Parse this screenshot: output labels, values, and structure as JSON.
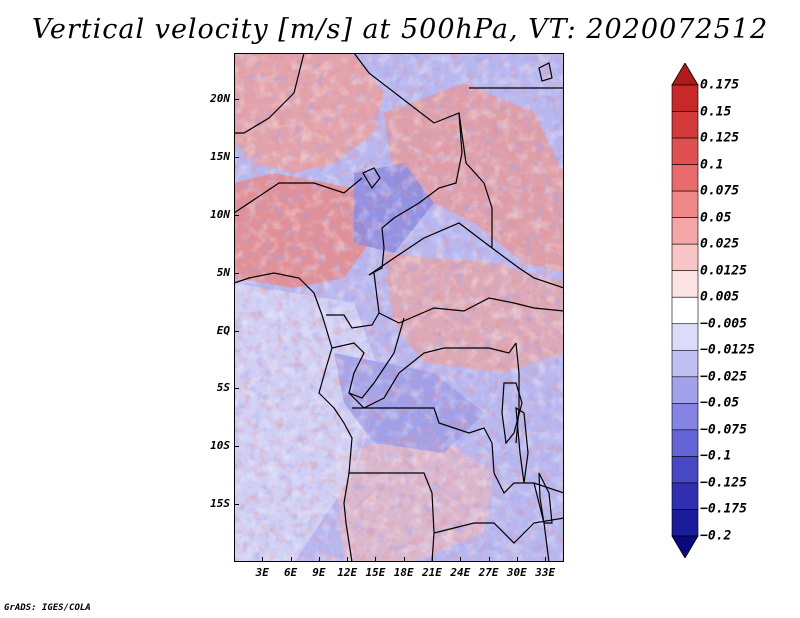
{
  "title": "Vertical velocity [m/s] at 500hPa, VT: 2020072512",
  "footer": "GrADS: IGES/COLA",
  "map": {
    "region": "Central Africa",
    "lon_range": [
      0,
      35
    ],
    "lat_range": [
      -20,
      24
    ],
    "lat_ticks": [
      {
        "label": "20N",
        "value": 20
      },
      {
        "label": "15N",
        "value": 15
      },
      {
        "label": "10N",
        "value": 10
      },
      {
        "label": "5N",
        "value": 5
      },
      {
        "label": "EQ",
        "value": 0
      },
      {
        "label": "5S",
        "value": -5
      },
      {
        "label": "10S",
        "value": -10
      },
      {
        "label": "15S",
        "value": -15
      }
    ],
    "lon_ticks": [
      {
        "label": "3E",
        "value": 3
      },
      {
        "label": "6E",
        "value": 6
      },
      {
        "label": "9E",
        "value": 9
      },
      {
        "label": "12E",
        "value": 12
      },
      {
        "label": "15E",
        "value": 15
      },
      {
        "label": "18E",
        "value": 18
      },
      {
        "label": "21E",
        "value": 21
      },
      {
        "label": "24E",
        "value": 24
      },
      {
        "label": "27E",
        "value": 27
      },
      {
        "label": "30E",
        "value": 30
      },
      {
        "label": "33E",
        "value": 33
      }
    ]
  },
  "colorbar": {
    "labels": [
      "0.175",
      "0.15",
      "0.125",
      "0.1",
      "0.075",
      "0.05",
      "0.025",
      "0.0125",
      "0.005",
      "−0.005",
      "−0.0125",
      "−0.025",
      "−0.05",
      "−0.075",
      "−0.1",
      "−0.125",
      "−0.175",
      "−0.2"
    ],
    "colors": [
      "#b01a1a",
      "#c82828",
      "#d43a3a",
      "#e05050",
      "#e86a6a",
      "#ef8888",
      "#f4a6a6",
      "#f8c6c6",
      "#fce2e2",
      "#ffffff",
      "#dcdcf8",
      "#c0c0f2",
      "#a2a2ec",
      "#8484e2",
      "#6464d4",
      "#4848c4",
      "#3030b0",
      "#1c1c9a",
      "#0a0a7e"
    ]
  }
}
